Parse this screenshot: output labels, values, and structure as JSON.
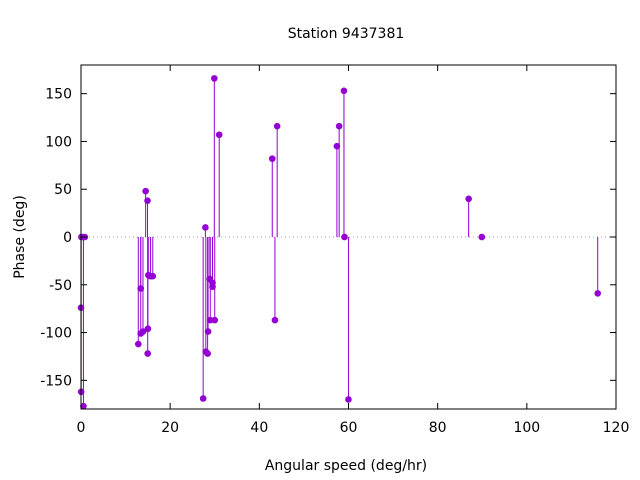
{
  "chart_data": {
    "type": "scatter",
    "style": "impulses with points",
    "title": "Station 9437381",
    "xlabel": "Angular speed (deg/hr)",
    "ylabel": "Phase (deg)",
    "xlim": [
      0,
      120
    ],
    "ylim": [
      -180,
      180
    ],
    "xticks": [
      0,
      20,
      40,
      60,
      80,
      100,
      120
    ],
    "yticks": [
      -150,
      -100,
      -50,
      0,
      50,
      100,
      150
    ],
    "zero_line": "dotted",
    "grid": false,
    "color": "#9400d3",
    "points": [
      {
        "x": 0.0,
        "y": -74
      },
      {
        "x": 0.04,
        "y": -162
      },
      {
        "x": 0.08,
        "y": 0
      },
      {
        "x": 0.5,
        "y": 0
      },
      {
        "x": 0.55,
        "y": -177
      },
      {
        "x": 0.85,
        "y": 0
      },
      {
        "x": 12.85,
        "y": -112
      },
      {
        "x": 13.4,
        "y": -54
      },
      {
        "x": 13.4,
        "y": -101
      },
      {
        "x": 13.9,
        "y": -99
      },
      {
        "x": 14.5,
        "y": 48
      },
      {
        "x": 14.92,
        "y": 38
      },
      {
        "x": 14.96,
        "y": -122
      },
      {
        "x": 15.0,
        "y": -96
      },
      {
        "x": 15.1,
        "y": -40
      },
      {
        "x": 15.6,
        "y": -41
      },
      {
        "x": 16.1,
        "y": -41
      },
      {
        "x": 27.4,
        "y": -169
      },
      {
        "x": 27.9,
        "y": 10
      },
      {
        "x": 28.0,
        "y": -120
      },
      {
        "x": 28.4,
        "y": -122
      },
      {
        "x": 28.5,
        "y": -99
      },
      {
        "x": 28.9,
        "y": -44
      },
      {
        "x": 29.0,
        "y": -87
      },
      {
        "x": 29.5,
        "y": -48
      },
      {
        "x": 29.5,
        "y": -52
      },
      {
        "x": 29.9,
        "y": 166
      },
      {
        "x": 30.0,
        "y": -87
      },
      {
        "x": 31.0,
        "y": 107
      },
      {
        "x": 42.9,
        "y": 82
      },
      {
        "x": 43.5,
        "y": -87
      },
      {
        "x": 44.0,
        "y": 116
      },
      {
        "x": 57.4,
        "y": 95
      },
      {
        "x": 57.9,
        "y": 116
      },
      {
        "x": 58.98,
        "y": 153
      },
      {
        "x": 59.1,
        "y": 0
      },
      {
        "x": 59.99,
        "y": -170
      },
      {
        "x": 86.95,
        "y": 40
      },
      {
        "x": 89.9,
        "y": 0
      },
      {
        "x": 115.9,
        "y": -59
      }
    ]
  }
}
